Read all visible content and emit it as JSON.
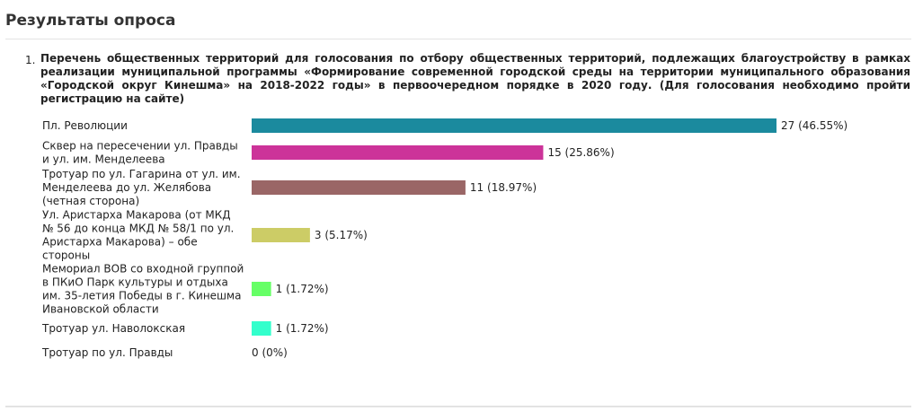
{
  "page": {
    "title": "Результаты опроса"
  },
  "question": {
    "number": "1.",
    "text": "Перечень общественных территорий для голосования по отбору общественных территорий, подлежащих благоустройству в рамках реализации муниципальной программы «Формирование современной городской среды на территории муниципального образования «Городской округ Кинешма» на 2018-2022 годы» в первоочередном порядке в 2020 году. (Для голосования необходимо пройти регистрацию на сайте)"
  },
  "chart_data": {
    "type": "bar",
    "orientation": "horizontal",
    "categories": [
      [
        "Пл. Революции"
      ],
      [
        "Сквер на пересечении ул. Правды",
        "и ул. им. Менделеева"
      ],
      [
        "Тротуар по ул. Гагарина от ул. им.",
        "Менделеева до ул. Желябова",
        "(четная сторона)"
      ],
      [
        "Ул. Аристарха Макарова (от МКД",
        "№ 56 до конца МКД № 58/1 по ул.",
        "Аристарха Макарова) – обе",
        "стороны"
      ],
      [
        "Мемориал ВОВ со входной группой",
        "в ПКиО Парк культуры и отдыха",
        "им. 35-летия Победы в г. Кинешма",
        "Ивановской области"
      ],
      [
        "Тротуар ул. Наволокская"
      ],
      [
        "Тротуар по ул. Правды"
      ]
    ],
    "values": [
      27,
      15,
      11,
      3,
      1,
      1,
      0
    ],
    "value_labels": [
      "27 (46.55%)",
      "15 (25.86%)",
      "11 (18.97%)",
      "3 (5.17%)",
      "1 (1.72%)",
      "1 (1.72%)",
      "0 (0%)"
    ],
    "percents": [
      46.55,
      25.86,
      18.97,
      5.17,
      1.72,
      1.72,
      0
    ],
    "colors": [
      "#1b8a9e",
      "#cc3399",
      "#9a6666",
      "#cccc66",
      "#66ff66",
      "#33ffcc",
      "#cccccc"
    ],
    "xlim": [
      0,
      27
    ],
    "grid": false,
    "legend": "none"
  }
}
